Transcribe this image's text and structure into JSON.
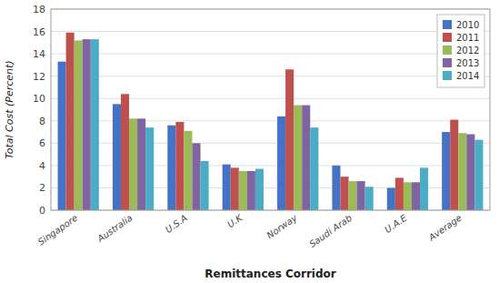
{
  "chart_data": {
    "type": "bar",
    "xlabel": "Remittances Corridor",
    "ylabel": "Total Cost (Percent)",
    "categories": [
      "Singapore",
      "Australia",
      "U.S.A",
      "U.K",
      "Norway",
      "Saudi Arab",
      "U.A.E",
      "Average"
    ],
    "series": [
      {
        "name": "2010",
        "color": "#4472C4",
        "values": [
          13.3,
          9.5,
          7.6,
          4.1,
          8.4,
          4.0,
          2.0,
          7.0
        ]
      },
      {
        "name": "2011",
        "color": "#C0504D",
        "values": [
          15.9,
          10.4,
          7.9,
          3.8,
          12.6,
          3.0,
          2.9,
          8.1
        ]
      },
      {
        "name": "2012",
        "color": "#9BBB59",
        "values": [
          15.2,
          8.2,
          7.1,
          3.5,
          9.4,
          2.6,
          2.5,
          6.9
        ]
      },
      {
        "name": "2013",
        "color": "#8064A2",
        "values": [
          15.3,
          8.2,
          6.0,
          3.5,
          9.4,
          2.6,
          2.5,
          6.8
        ]
      },
      {
        "name": "2014",
        "color": "#4BACC6",
        "values": [
          15.3,
          7.4,
          4.4,
          3.7,
          7.4,
          2.1,
          3.8,
          6.3
        ]
      }
    ],
    "ylim": [
      0,
      18
    ],
    "yticks": [
      0,
      2,
      4,
      6,
      8,
      10,
      12,
      14,
      16,
      18
    ],
    "grid": true,
    "legend": "upper right"
  }
}
